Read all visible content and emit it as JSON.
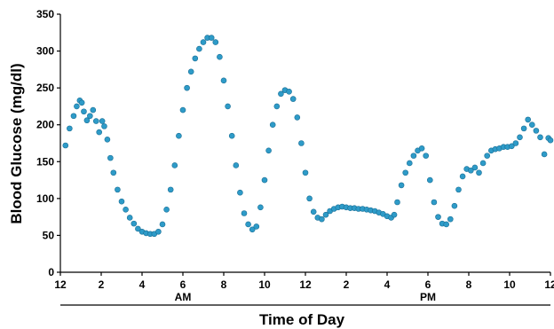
{
  "chart_data": {
    "type": "scatter",
    "title": "",
    "xlabel": "Time of Day",
    "ylabel": "Blood Glucose (mg/dl)",
    "ylim": [
      0,
      350
    ],
    "xlim": [
      0,
      24
    ],
    "grid": false,
    "point_color": "#2e9bc8",
    "point_edge_color": "#1a6f96",
    "y_ticks": [
      0,
      50,
      100,
      150,
      200,
      250,
      300,
      350
    ],
    "x_ticks": [
      {
        "hour": 0,
        "label": "12"
      },
      {
        "hour": 2,
        "label": "2"
      },
      {
        "hour": 4,
        "label": "4"
      },
      {
        "hour": 6,
        "label": "6"
      },
      {
        "hour": 8,
        "label": "8"
      },
      {
        "hour": 10,
        "label": "10"
      },
      {
        "hour": 12,
        "label": "12"
      },
      {
        "hour": 14,
        "label": "2"
      },
      {
        "hour": 16,
        "label": "4"
      },
      {
        "hour": 18,
        "label": "6"
      },
      {
        "hour": 20,
        "label": "8"
      },
      {
        "hour": 22,
        "label": "10"
      },
      {
        "hour": 24,
        "label": "12"
      }
    ],
    "periods": [
      {
        "label": "AM",
        "center_hour": 6
      },
      {
        "label": "PM",
        "center_hour": 18
      }
    ],
    "series": [
      {
        "points": [
          [
            0.25,
            172
          ],
          [
            0.45,
            195
          ],
          [
            0.65,
            212
          ],
          [
            0.8,
            225
          ],
          [
            0.95,
            233
          ],
          [
            1.05,
            230
          ],
          [
            1.15,
            218
          ],
          [
            1.3,
            206
          ],
          [
            1.45,
            212
          ],
          [
            1.6,
            220
          ],
          [
            1.75,
            205
          ],
          [
            1.9,
            190
          ],
          [
            2.05,
            205
          ],
          [
            2.15,
            198
          ],
          [
            2.3,
            180
          ],
          [
            2.45,
            155
          ],
          [
            2.6,
            135
          ],
          [
            2.8,
            112
          ],
          [
            3.0,
            96
          ],
          [
            3.2,
            85
          ],
          [
            3.4,
            74
          ],
          [
            3.6,
            66
          ],
          [
            3.8,
            59
          ],
          [
            4.0,
            55
          ],
          [
            4.2,
            53
          ],
          [
            4.4,
            52
          ],
          [
            4.6,
            52
          ],
          [
            4.8,
            55
          ],
          [
            5.0,
            65
          ],
          [
            5.2,
            85
          ],
          [
            5.4,
            112
          ],
          [
            5.6,
            145
          ],
          [
            5.8,
            185
          ],
          [
            6.0,
            220
          ],
          [
            6.2,
            250
          ],
          [
            6.4,
            272
          ],
          [
            6.6,
            290
          ],
          [
            6.8,
            303
          ],
          [
            7.0,
            312
          ],
          [
            7.2,
            318
          ],
          [
            7.4,
            318
          ],
          [
            7.6,
            312
          ],
          [
            7.8,
            292
          ],
          [
            8.0,
            260
          ],
          [
            8.2,
            225
          ],
          [
            8.4,
            185
          ],
          [
            8.6,
            145
          ],
          [
            8.8,
            108
          ],
          [
            9.0,
            80
          ],
          [
            9.2,
            65
          ],
          [
            9.4,
            58
          ],
          [
            9.6,
            62
          ],
          [
            9.8,
            88
          ],
          [
            10.0,
            125
          ],
          [
            10.2,
            165
          ],
          [
            10.4,
            200
          ],
          [
            10.6,
            225
          ],
          [
            10.8,
            242
          ],
          [
            11.0,
            247
          ],
          [
            11.2,
            245
          ],
          [
            11.4,
            235
          ],
          [
            11.6,
            210
          ],
          [
            11.8,
            175
          ],
          [
            12.0,
            135
          ],
          [
            12.2,
            100
          ],
          [
            12.4,
            82
          ],
          [
            12.6,
            74
          ],
          [
            12.8,
            72
          ],
          [
            13.0,
            78
          ],
          [
            13.2,
            83
          ],
          [
            13.4,
            86
          ],
          [
            13.6,
            88
          ],
          [
            13.8,
            89
          ],
          [
            14.0,
            88
          ],
          [
            14.2,
            87
          ],
          [
            14.4,
            87
          ],
          [
            14.6,
            86
          ],
          [
            14.8,
            86
          ],
          [
            15.0,
            85
          ],
          [
            15.2,
            84
          ],
          [
            15.4,
            83
          ],
          [
            15.6,
            81
          ],
          [
            15.8,
            79
          ],
          [
            16.0,
            76
          ],
          [
            16.2,
            74
          ],
          [
            16.35,
            78
          ],
          [
            16.5,
            95
          ],
          [
            16.7,
            118
          ],
          [
            16.9,
            135
          ],
          [
            17.1,
            148
          ],
          [
            17.3,
            158
          ],
          [
            17.5,
            165
          ],
          [
            17.7,
            168
          ],
          [
            17.9,
            158
          ],
          [
            18.1,
            125
          ],
          [
            18.3,
            95
          ],
          [
            18.5,
            75
          ],
          [
            18.7,
            66
          ],
          [
            18.9,
            65
          ],
          [
            19.1,
            72
          ],
          [
            19.3,
            90
          ],
          [
            19.5,
            112
          ],
          [
            19.7,
            130
          ],
          [
            19.9,
            140
          ],
          [
            20.1,
            138
          ],
          [
            20.3,
            142
          ],
          [
            20.5,
            135
          ],
          [
            20.7,
            148
          ],
          [
            20.9,
            158
          ],
          [
            21.1,
            165
          ],
          [
            21.3,
            167
          ],
          [
            21.5,
            168
          ],
          [
            21.7,
            170
          ],
          [
            21.9,
            170
          ],
          [
            22.1,
            171
          ],
          [
            22.3,
            175
          ],
          [
            22.5,
            183
          ],
          [
            22.7,
            195
          ],
          [
            22.9,
            207
          ],
          [
            23.1,
            200
          ],
          [
            23.3,
            192
          ],
          [
            23.5,
            183
          ],
          [
            23.7,
            160
          ],
          [
            23.9,
            182
          ],
          [
            24.0,
            179
          ]
        ]
      }
    ]
  }
}
